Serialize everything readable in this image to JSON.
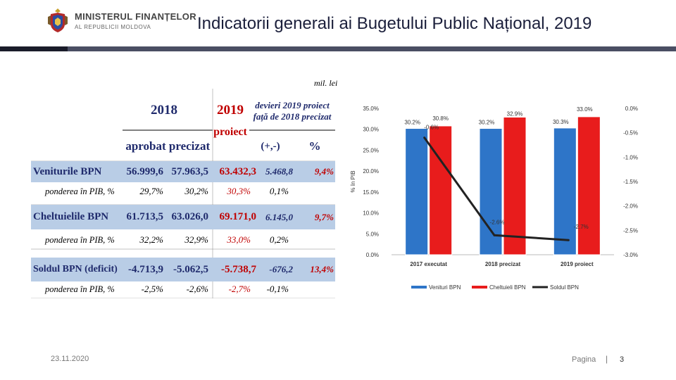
{
  "header": {
    "logo_line1": "MINISTERUL FINANȚELOR",
    "logo_line2": "AL REPUBLICII MOLDOVA",
    "title": "Indicatorii generali ai Bugetului Public Național, 2019"
  },
  "table": {
    "unit": "mil. lei",
    "head_2018": "2018",
    "head_2019": "2019",
    "head_proiect": "proiect",
    "head_devieri": "devieri 2019 proiect față de 2018 precizat",
    "head_aprobat": "aprobat",
    "head_precizat": "precizat",
    "head_abs": "(+,-)",
    "head_pct": "%",
    "rows": [
      {
        "label": "Veniturile BPN",
        "aprobat": "56.999,6",
        "precizat": "57.963,5",
        "proiect": "63.432,3",
        "abs": "5.468,8",
        "pct": "9,4%"
      },
      {
        "label": "ponderea în PIB, %",
        "aprobat": "29,7%",
        "precizat": "30,2%",
        "proiect": "30,3%",
        "abs": "0,1%",
        "pct": ""
      },
      {
        "label": "Cheltuielile BPN",
        "aprobat": "61.713,5",
        "precizat": "63.026,0",
        "proiect": "69.171,0",
        "abs": "6.145,0",
        "pct": "9,7%"
      },
      {
        "label": "ponderea în PIB, %",
        "aprobat": "32,2%",
        "precizat": "32,9%",
        "proiect": "33,0%",
        "abs": "0,2%",
        "pct": ""
      },
      {
        "label": "Soldul BPN (deficit)",
        "aprobat": "-4.713,9",
        "precizat": "-5.062,5",
        "proiect": "-5.738,7",
        "abs": "-676,2",
        "pct": "13,4%"
      },
      {
        "label": "ponderea în PIB, %",
        "aprobat": "-2,5%",
        "precizat": "-2,6%",
        "proiect": "-2,7%",
        "abs": "-0,1%",
        "pct": ""
      }
    ]
  },
  "chart_data": {
    "type": "bar",
    "categories": [
      "2017 executat",
      "2018 precizat",
      "2019 proiect"
    ],
    "ylabel": "% în PIB",
    "ylim": [
      0,
      35
    ],
    "y2lim": [
      -3,
      0
    ],
    "yticks": [
      "35.0%",
      "30.0%",
      "25.0%",
      "20.0%",
      "15.0%",
      "10.0%",
      "5.0%",
      "0.0%"
    ],
    "y2ticks": [
      "0.0%",
      "-0.5%",
      "-1.0%",
      "-1.5%",
      "-2.0%",
      "-2.5%",
      "-3.0%"
    ],
    "series": [
      {
        "name": "Venituri BPN",
        "kind": "bar",
        "color": "#2e75c8",
        "values": [
          30.2,
          30.2,
          30.3
        ],
        "labels": [
          "30.2%",
          "30.2%",
          "30.3%"
        ]
      },
      {
        "name": "Cheltuieli BPN",
        "kind": "bar",
        "color": "#e81c1c",
        "values": [
          30.8,
          32.9,
          33.0
        ],
        "labels": [
          "30.8%",
          "32.9%",
          "33.0%"
        ]
      },
      {
        "name": "Soldul BPN",
        "kind": "line",
        "axis": "right",
        "color": "#222222",
        "values": [
          -0.6,
          -2.6,
          -2.7
        ],
        "labels": [
          "-0.6%",
          "-2.6%",
          "-2.7%"
        ]
      }
    ],
    "legend": "bottom",
    "grid": false
  },
  "footer": {
    "date": "23.11.2020",
    "page_label": "Pagina",
    "separator": "|",
    "page_number": "3"
  }
}
